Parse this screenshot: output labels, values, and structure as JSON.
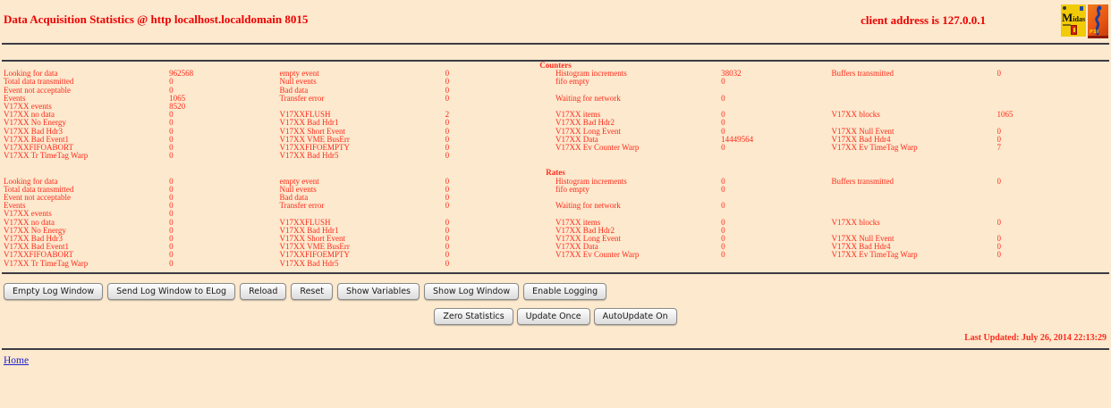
{
  "page": {
    "title": "Data Acquisition Statistics @ http localhost.localdomain 8015",
    "client_address": "client address is 127.0.0.1",
    "last_updated": "Last Updated: July 26, 2014 22:13:29",
    "home_link": "Home"
  },
  "logos": {
    "midas": {
      "label": "Midas"
    },
    "psi": {
      "label": "PSI"
    }
  },
  "colors": {
    "page_background": "#FCE9CE",
    "title_text": "#EE0000",
    "heading_text": "#EE0000",
    "stat_text": "#FF2A1A",
    "link": "#2222CC",
    "rule": "#3C3C44",
    "button_text": "#1A1A1A"
  },
  "sections": [
    {
      "title": "Counters",
      "rows": [
        [
          "Looking for data",
          "962568",
          "empty event",
          "0",
          "Histogram increments",
          "38032",
          "Buffers transmitted",
          "0"
        ],
        [
          "Total data transmitted",
          "0",
          "Null events",
          "0",
          "fifo empty",
          "0",
          "",
          ""
        ],
        [
          "Event not acceptable",
          "0",
          "Bad data",
          "0",
          "",
          "",
          "",
          ""
        ],
        [
          "Events",
          "1065",
          "Transfer error",
          "0",
          "Waiting for network",
          "0",
          "",
          ""
        ],
        [
          "V17XX events",
          "8520",
          "",
          "",
          "",
          "",
          "",
          ""
        ],
        [
          "V17XX no data",
          "0",
          "V17XXFLUSH",
          "2",
          "V17XX items",
          "0",
          "V17XX blocks",
          "1065"
        ],
        [
          "V17XX No Energy",
          "0",
          "V17XX Bad Hdr1",
          "0",
          "V17XX Bad Hdr2",
          "0",
          "",
          ""
        ],
        [
          "V17XX Bad Hdr3",
          "0",
          "V17XX Short Event",
          "0",
          "V17XX Long Event",
          "0",
          "V17XX Null Event",
          "0"
        ],
        [
          "V17XX Bad Event1",
          "0",
          "V17XX VME BusErr",
          "0",
          "V17XX Data",
          "14449564",
          "V17XX Bad Hdr4",
          "0"
        ],
        [
          "V17XXFIFOABORT",
          "0",
          "V17XXFIFOEMPTY",
          "0",
          "V17XX Ev Counter Warp",
          "0",
          "V17XX Ev TimeTag Warp",
          "7"
        ],
        [
          "V17XX Tr TimeTag Warp",
          "0",
          "V17XX Bad Hdr5",
          "0",
          "",
          "",
          "",
          ""
        ]
      ]
    },
    {
      "title": "Rates",
      "rows": [
        [
          "Looking for data",
          "0",
          "empty event",
          "0",
          "Histogram increments",
          "0",
          "Buffers transmitted",
          "0"
        ],
        [
          "Total data transmitted",
          "0",
          "Null events",
          "0",
          "fifo empty",
          "0",
          "",
          ""
        ],
        [
          "Event not acceptable",
          "0",
          "Bad data",
          "0",
          "",
          "",
          "",
          ""
        ],
        [
          "Events",
          "0",
          "Transfer error",
          "0",
          "Waiting for network",
          "0",
          "",
          ""
        ],
        [
          "V17XX events",
          "0",
          "",
          "",
          "",
          "",
          "",
          ""
        ],
        [
          "V17XX no data",
          "0",
          "V17XXFLUSH",
          "0",
          "V17XX items",
          "0",
          "V17XX blocks",
          "0"
        ],
        [
          "V17XX No Energy",
          "0",
          "V17XX Bad Hdr1",
          "0",
          "V17XX Bad Hdr2",
          "0",
          "",
          ""
        ],
        [
          "V17XX Bad Hdr3",
          "0",
          "V17XX Short Event",
          "0",
          "V17XX Long Event",
          "0",
          "V17XX Null Event",
          "0"
        ],
        [
          "V17XX Bad Event1",
          "0",
          "V17XX VME BusErr",
          "0",
          "V17XX Data",
          "0",
          "V17XX Bad Hdr4",
          "0"
        ],
        [
          "V17XXFIFOABORT",
          "0",
          "V17XXFIFOEMPTY",
          "0",
          "V17XX Ev Counter Warp",
          "0",
          "V17XX Ev TimeTag Warp",
          "0"
        ],
        [
          "V17XX Tr TimeTag Warp",
          "0",
          "V17XX Bad Hdr5",
          "0",
          "",
          "",
          "",
          ""
        ]
      ]
    }
  ],
  "toolbar": {
    "row1": [
      "Empty Log Window",
      "Send Log Window to ELog",
      "Reload",
      "Reset",
      "Show Variables",
      "Show Log Window",
      "Enable Logging"
    ],
    "row2": [
      "Zero Statistics",
      "Update Once",
      "AutoUpdate On"
    ]
  }
}
